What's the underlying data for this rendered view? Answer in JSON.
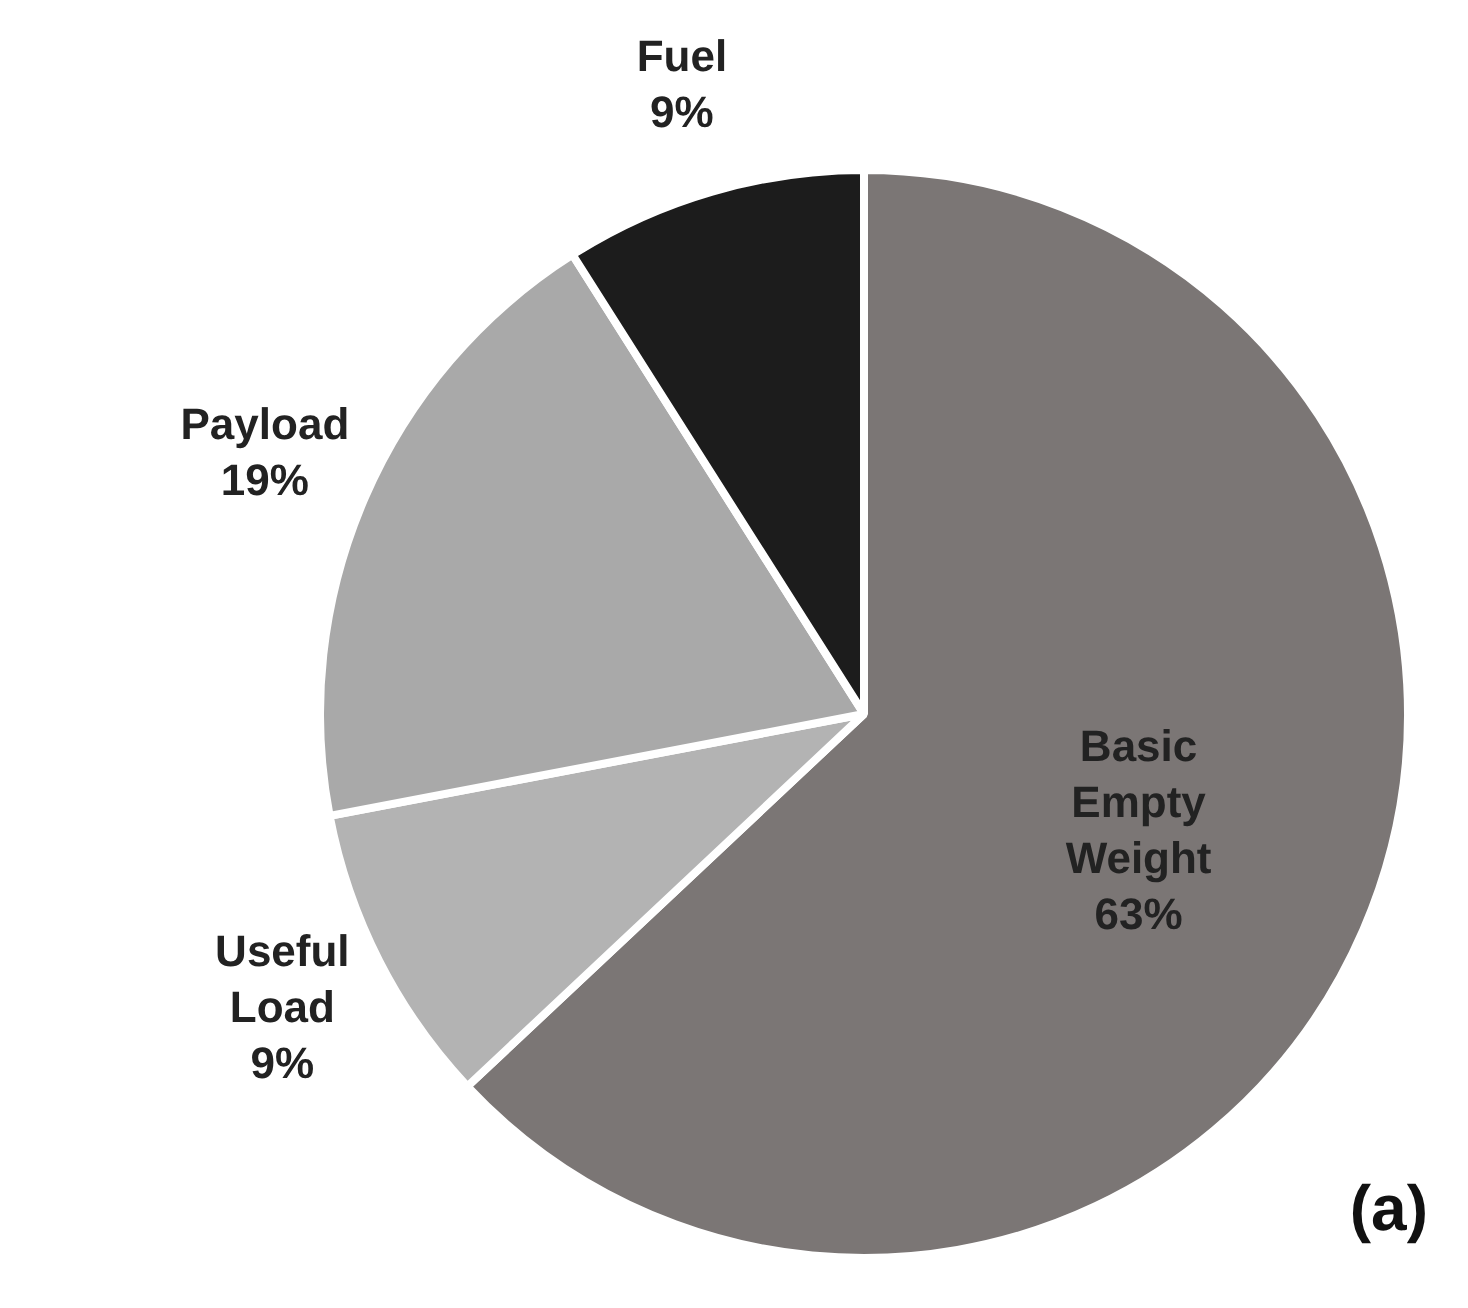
{
  "chart_data": {
    "type": "pie",
    "categories": [
      "Basic Empty Weight",
      "Useful Load",
      "Payload",
      "Fuel"
    ],
    "values": [
      63,
      9,
      19,
      9
    ],
    "colors": [
      "#7b7675",
      "#b3b3b3",
      "#a9a9a9",
      "#1c1c1c"
    ],
    "value_labels": [
      "63%",
      "9%",
      "19%",
      "9%"
    ],
    "annotations": [
      "(a)"
    ],
    "legend": false
  }
}
